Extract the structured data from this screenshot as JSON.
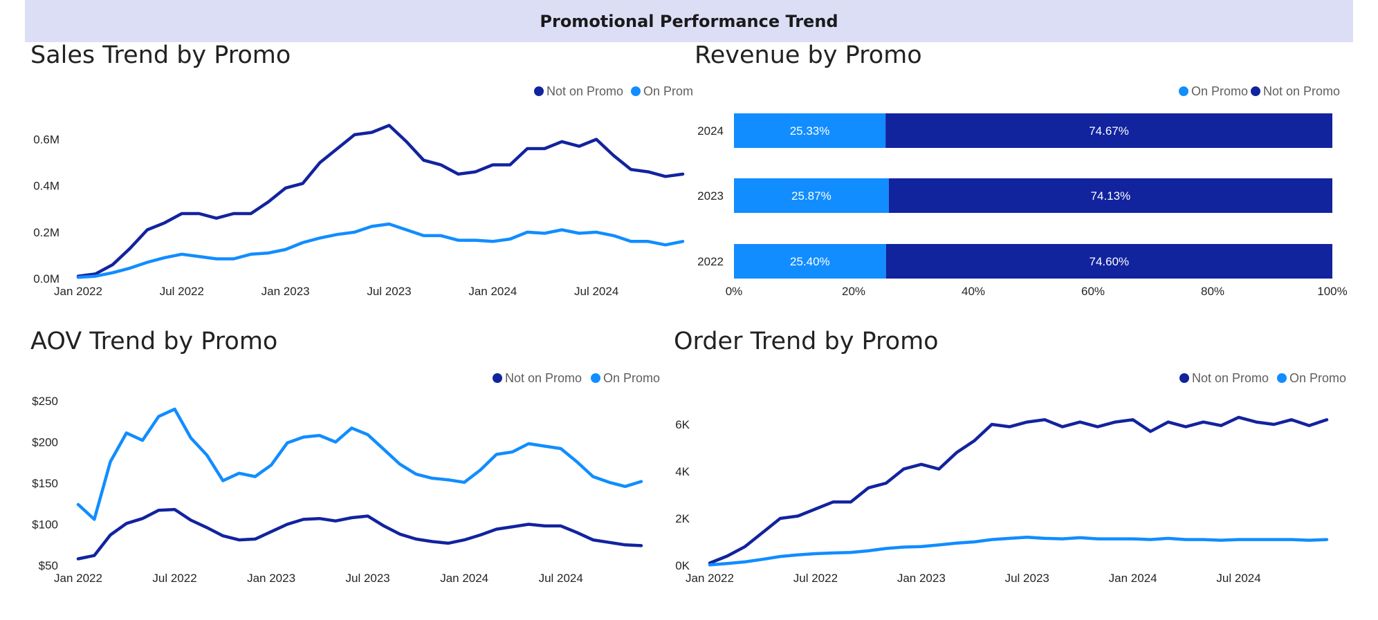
{
  "header": {
    "title": "Promotional Performance Trend"
  },
  "colors": {
    "not_on_promo": "#12239e",
    "on_promo": "#118dff",
    "header_bg": "#dcdef6"
  },
  "chart_data": [
    {
      "id": "sales",
      "type": "line",
      "title": "Sales Trend by Promo",
      "x_ticks": [
        "Jan 2022",
        "Jul 2022",
        "Jan 2023",
        "Jul 2023",
        "Jan 2024",
        "Jul 2024"
      ],
      "y_ticks": [
        "0.0M",
        "0.2M",
        "0.4M",
        "0.6M"
      ],
      "ylim": [
        0,
        0.7
      ],
      "legend": [
        "Not on Promo",
        "On Promo"
      ],
      "legend_visible_text": [
        "Not on Promo",
        "On Prom"
      ],
      "series": [
        {
          "name": "Not on Promo",
          "color": "#12239e",
          "values": [
            0.01,
            0.02,
            0.06,
            0.13,
            0.21,
            0.24,
            0.28,
            0.28,
            0.26,
            0.28,
            0.28,
            0.33,
            0.39,
            0.41,
            0.5,
            0.56,
            0.62,
            0.63,
            0.66,
            0.59,
            0.51,
            0.49,
            0.45,
            0.46,
            0.49,
            0.49,
            0.56,
            0.56,
            0.59,
            0.57,
            0.6,
            0.53,
            0.47,
            0.46,
            0.44,
            0.45
          ]
        },
        {
          "name": "On Promo",
          "color": "#118dff",
          "values": [
            0.005,
            0.01,
            0.025,
            0.045,
            0.07,
            0.09,
            0.105,
            0.095,
            0.085,
            0.085,
            0.105,
            0.11,
            0.125,
            0.155,
            0.175,
            0.19,
            0.2,
            0.225,
            0.235,
            0.21,
            0.185,
            0.185,
            0.165,
            0.165,
            0.16,
            0.17,
            0.2,
            0.195,
            0.21,
            0.195,
            0.2,
            0.185,
            0.16,
            0.16,
            0.145,
            0.16
          ]
        }
      ]
    },
    {
      "id": "revenue",
      "type": "bar",
      "orientation": "horizontal",
      "stacked": "100%",
      "title": "Revenue by Promo",
      "categories": [
        "2024",
        "2023",
        "2022"
      ],
      "x_ticks": [
        "0%",
        "20%",
        "40%",
        "60%",
        "80%",
        "100%"
      ],
      "legend": [
        "On Promo",
        "Not on Promo"
      ],
      "series": [
        {
          "name": "On Promo",
          "color": "#118dff",
          "values": [
            25.33,
            25.87,
            25.4
          ],
          "labels": [
            "25.33%",
            "25.87%",
            "25.40%"
          ]
        },
        {
          "name": "Not on Promo",
          "color": "#12239e",
          "values": [
            74.67,
            74.13,
            74.6
          ],
          "labels": [
            "74.67%",
            "74.13%",
            "74.60%"
          ]
        }
      ]
    },
    {
      "id": "aov",
      "type": "line",
      "title": "AOV Trend by Promo",
      "x_ticks": [
        "Jan 2022",
        "Jul 2022",
        "Jan 2023",
        "Jul 2023",
        "Jan 2024",
        "Jul 2024"
      ],
      "y_ticks": [
        "$50",
        "$100",
        "$150",
        "$200",
        "$250"
      ],
      "ylim": [
        50,
        250
      ],
      "legend": [
        "Not on Promo",
        "On Promo"
      ],
      "series": [
        {
          "name": "Not on Promo",
          "color": "#12239e",
          "values": [
            58,
            62,
            87,
            101,
            107,
            117,
            118,
            105,
            96,
            86,
            81,
            82,
            91,
            100,
            106,
            107,
            104,
            108,
            110,
            98,
            88,
            82,
            79,
            77,
            81,
            87,
            94,
            97,
            100,
            98,
            98,
            90,
            81,
            78,
            75,
            74
          ]
        },
        {
          "name": "On Promo",
          "color": "#118dff",
          "values": [
            124,
            106,
            176,
            211,
            202,
            231,
            240,
            205,
            184,
            153,
            162,
            158,
            172,
            199,
            206,
            208,
            200,
            217,
            209,
            191,
            173,
            161,
            156,
            154,
            151,
            166,
            185,
            188,
            198,
            195,
            192,
            176,
            158,
            151,
            146,
            152
          ]
        }
      ]
    },
    {
      "id": "orders",
      "type": "line",
      "title": "Order Trend by Promo",
      "x_ticks": [
        "Jan 2022",
        "Jul 2022",
        "Jan 2023",
        "Jul 2023",
        "Jan 2024",
        "Jul 2024"
      ],
      "y_ticks": [
        "0K",
        "2K",
        "4K",
        "6K"
      ],
      "ylim": [
        0,
        7000
      ],
      "legend": [
        "Not on Promo",
        "On Promo"
      ],
      "series": [
        {
          "name": "Not on Promo",
          "color": "#12239e",
          "values": [
            100,
            400,
            800,
            1400,
            2000,
            2100,
            2400,
            2700,
            2700,
            3300,
            3500,
            4100,
            4300,
            4100,
            4800,
            5300,
            6000,
            5900,
            6100,
            6200,
            5900,
            6100,
            5900,
            6100,
            6200,
            5700,
            6100,
            5900,
            6100,
            5950,
            6300,
            6100,
            6000,
            6200,
            5950,
            6200
          ]
        },
        {
          "name": "On Promo",
          "color": "#118dff",
          "values": [
            20,
            80,
            150,
            260,
            380,
            450,
            500,
            530,
            550,
            620,
            720,
            780,
            800,
            870,
            950,
            1000,
            1100,
            1150,
            1200,
            1150,
            1130,
            1180,
            1130,
            1130,
            1130,
            1100,
            1150,
            1100,
            1100,
            1070,
            1100,
            1100,
            1100,
            1100,
            1070,
            1100
          ]
        }
      ]
    }
  ]
}
